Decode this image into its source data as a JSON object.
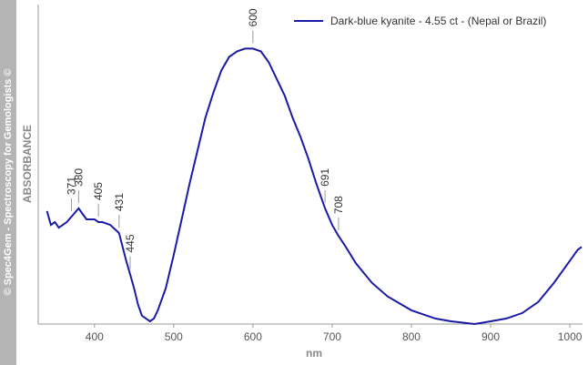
{
  "chart_data": {
    "type": "line",
    "watermark": "© Spec4Gem - Spectroscopy for Gemologists ©",
    "x_label": "nm",
    "y_label": "ABSORBANCE",
    "legend": "upper right",
    "x": [
      340,
      345,
      350,
      355,
      360,
      365,
      371,
      380,
      385,
      390,
      400,
      405,
      410,
      420,
      431,
      440,
      445,
      450,
      455,
      460,
      465,
      470,
      475,
      480,
      490,
      500,
      510,
      520,
      530,
      540,
      550,
      560,
      570,
      580,
      590,
      600,
      610,
      620,
      630,
      640,
      650,
      660,
      670,
      680,
      691,
      700,
      708,
      715,
      730,
      750,
      770,
      800,
      830,
      850,
      880,
      900,
      920,
      940,
      960,
      980,
      1000,
      1010,
      1015
    ],
    "series": [
      {
        "name": "Dark-blue kyanite - 4.55 ct - (Nepal or Brazil)",
        "color": "#1a1aa6",
        "values": [
          0.41,
          0.36,
          0.37,
          0.35,
          0.36,
          0.37,
          0.39,
          0.42,
          0.4,
          0.38,
          0.38,
          0.37,
          0.37,
          0.36,
          0.33,
          0.23,
          0.18,
          0.13,
          0.07,
          0.03,
          0.02,
          0.01,
          0.02,
          0.05,
          0.13,
          0.25,
          0.38,
          0.51,
          0.63,
          0.75,
          0.84,
          0.92,
          0.97,
          0.99,
          1.0,
          1.0,
          0.99,
          0.95,
          0.89,
          0.83,
          0.75,
          0.68,
          0.6,
          0.51,
          0.42,
          0.36,
          0.32,
          0.29,
          0.22,
          0.15,
          0.1,
          0.05,
          0.02,
          0.01,
          0.0,
          0.01,
          0.02,
          0.04,
          0.08,
          0.15,
          0.23,
          0.27,
          0.28
        ]
      }
    ],
    "peak_labels": [
      371,
      380,
      405,
      431,
      445,
      600,
      691,
      708
    ],
    "xlim": [
      329,
      1016
    ],
    "xticks": [
      400,
      500,
      600,
      700,
      800,
      900,
      1000
    ],
    "ylim": [
      0,
      1.16
    ]
  }
}
